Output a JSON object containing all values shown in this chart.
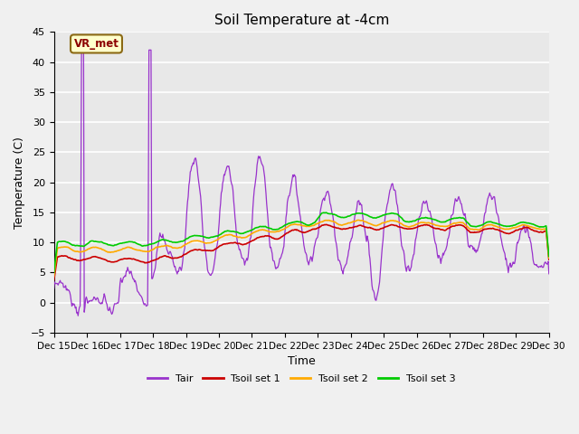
{
  "title": "Soil Temperature at -4cm",
  "xlabel": "Time",
  "ylabel": "Temperature (C)",
  "ylim": [
    -5,
    45
  ],
  "yticks": [
    -5,
    0,
    5,
    10,
    15,
    20,
    25,
    30,
    35,
    40,
    45
  ],
  "bg_color": "#e8e8e8",
  "grid_color": "#ffffff",
  "fig_bg_color": "#f0f0f0",
  "colors": {
    "Tair": "#9933cc",
    "Tsoil1": "#cc0000",
    "Tsoil2": "#ffaa00",
    "Tsoil3": "#00cc00"
  },
  "legend_labels": [
    "Tair",
    "Tsoil set 1",
    "Tsoil set 2",
    "Tsoil set 3"
  ],
  "annotation_text": "VR_met",
  "x_tick_labels": [
    "Dec 15",
    "Dec 16",
    "Dec 17",
    "Dec 18",
    "Dec 19",
    "Dec 20",
    "Dec 21",
    "Dec 22",
    "Dec 23",
    "Dec 24",
    "Dec 25",
    "Dec 26",
    "Dec 27",
    "Dec 28",
    "Dec 29",
    "Dec 30"
  ]
}
